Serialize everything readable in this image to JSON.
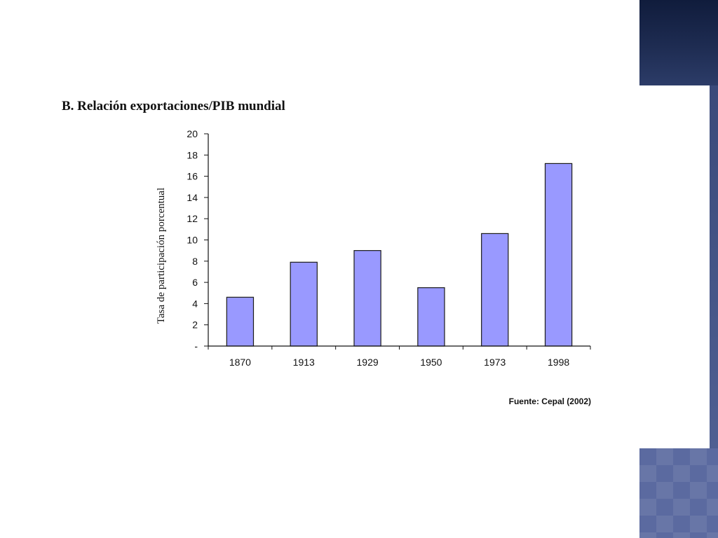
{
  "chart_data": {
    "type": "bar",
    "title": "B. Relación exportaciones/PIB mundial",
    "ylabel": "Tasa de participación porcentual",
    "xlabel": "",
    "categories": [
      "1870",
      "1913",
      "1929",
      "1950",
      "1973",
      "1998"
    ],
    "values": [
      4.6,
      7.9,
      9.0,
      5.5,
      10.6,
      17.2
    ],
    "ylim": [
      0,
      20
    ],
    "yticks": [
      0,
      2,
      4,
      6,
      8,
      10,
      12,
      14,
      16,
      18,
      20
    ],
    "ytick_labels": [
      "-",
      "2",
      "4",
      "6",
      "8",
      "10",
      "12",
      "14",
      "16",
      "18",
      "20"
    ],
    "grid": false,
    "bar_color": "#9999ff",
    "bar_edge_color": "#1a1a1a",
    "source": "Fuente: Cepal (2002)"
  },
  "colors": {
    "deco_navy": "#1e2c52",
    "deco_blue": "#5b6aa0"
  }
}
